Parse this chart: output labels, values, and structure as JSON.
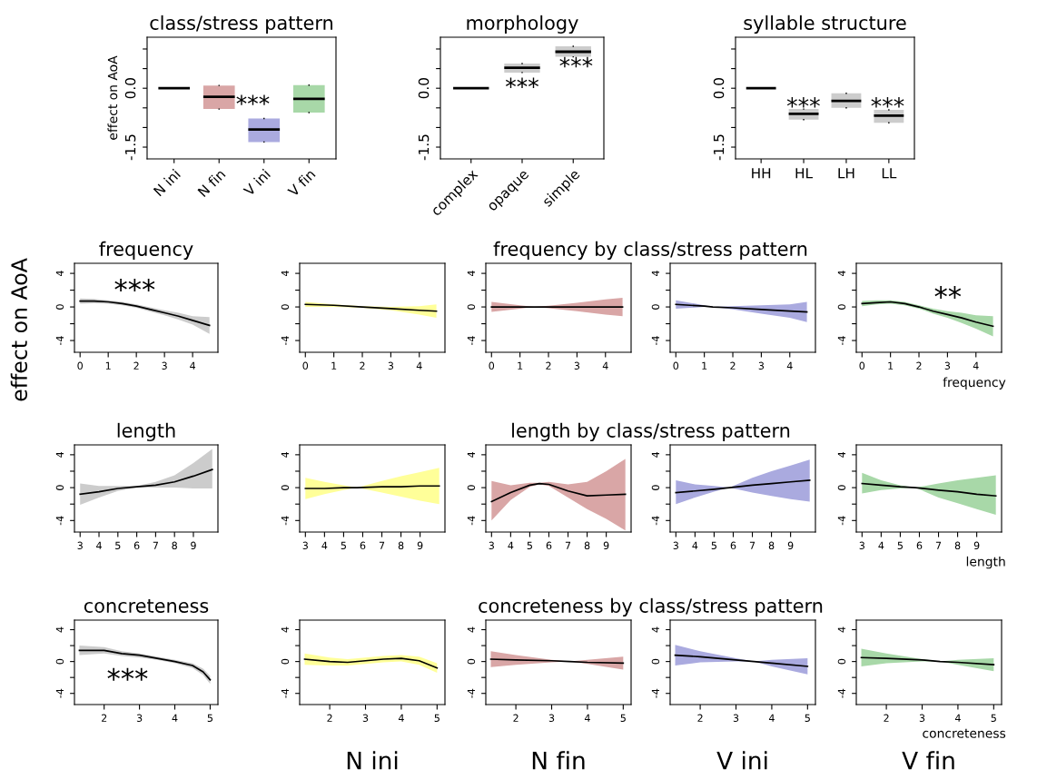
{
  "chart_data": [
    {
      "type": "box",
      "title": "class/stress pattern",
      "ylabel": "effect on AoA",
      "categories": [
        "N ini",
        "N fin",
        "V ini",
        "V fin"
      ],
      "boxes": [
        {
          "low": 0,
          "q1": 0,
          "median": 0,
          "q3": 0,
          "high": 0
        },
        {
          "low": -0.53,
          "q1": -0.53,
          "median": -0.22,
          "q3": 0.07,
          "high": 0.07
        },
        {
          "low": -1.37,
          "q1": -1.37,
          "median": -1.05,
          "q3": -0.77,
          "high": -0.77
        },
        {
          "low": -0.62,
          "q1": -0.62,
          "median": -0.27,
          "q3": 0.08,
          "high": 0.08
        }
      ],
      "colors": [
        null,
        "#d9a6a6",
        "#aaaadf",
        "#a8d8a8"
      ],
      "ylim": [
        -1.8,
        1.3
      ],
      "yticks": [
        {
          "value": 1.0,
          "label": null
        },
        {
          "value": 0.5,
          "label": null
        },
        {
          "value": 0.0,
          "label": "0.0"
        },
        {
          "value": -0.5,
          "label": null
        },
        {
          "value": -1.0,
          "label": null
        },
        -1.5
      ],
      "annotations": [
        "***"
      ]
    },
    {
      "type": "box",
      "title": "morphology",
      "categories": [
        "complex",
        "opaque",
        "simple"
      ],
      "boxes": [
        {
          "low": 0,
          "q1": 0,
          "median": 0,
          "q3": 0,
          "high": 0
        },
        {
          "low": 0.4,
          "q1": 0.4,
          "median": 0.52,
          "q3": 0.63,
          "high": 0.63
        },
        {
          "low": 0.8,
          "q1": 0.8,
          "median": 0.93,
          "q3": 1.07,
          "high": 1.07
        }
      ],
      "colors": [
        null,
        "#cccccc",
        "#cccccc"
      ],
      "ylim": [
        -1.8,
        1.3
      ],
      "yticks": [
        {
          "value": 1.0,
          "label": null
        },
        {
          "value": 0.5,
          "label": null
        },
        {
          "value": 0.0,
          "label": "0.0"
        },
        {
          "value": -0.5,
          "label": null
        },
        {
          "value": -1.0,
          "label": null
        },
        -1.5
      ],
      "annotations": [
        "***",
        "***"
      ]
    },
    {
      "type": "box",
      "title": "syllable structure",
      "categories": [
        "HH",
        "HL",
        "LH",
        "LL"
      ],
      "boxes": [
        {
          "low": 0,
          "q1": 0,
          "median": 0,
          "q3": 0,
          "high": 0
        },
        {
          "low": -0.8,
          "q1": -0.8,
          "median": -0.65,
          "q3": -0.53,
          "high": -0.53
        },
        {
          "low": -0.5,
          "q1": -0.5,
          "median": -0.32,
          "q3": -0.13,
          "high": -0.13
        },
        {
          "low": -0.88,
          "q1": -0.88,
          "median": -0.7,
          "q3": -0.55,
          "high": -0.55
        }
      ],
      "colors": [
        null,
        "#cccccc",
        "#cccccc",
        "#cccccc"
      ],
      "ylim": [
        -1.8,
        1.3
      ],
      "yticks": [
        {
          "value": 1.0,
          "label": null
        },
        {
          "value": 0.5,
          "label": null
        },
        {
          "value": 0.0,
          "label": "0.0"
        },
        {
          "value": -0.5,
          "label": null
        },
        {
          "value": -1.0,
          "label": null
        },
        -1.5
      ],
      "annotations": [
        "***",
        "***"
      ]
    },
    {
      "type": "line",
      "title": "frequency",
      "ylabel": "effect on AoA",
      "x": [
        0,
        0.5,
        1,
        1.5,
        2,
        2.5,
        3,
        3.5,
        4,
        4.6
      ],
      "series": [
        {
          "color": "#000000",
          "values": [
            0.7,
            0.7,
            0.6,
            0.4,
            0.1,
            -0.3,
            -0.7,
            -1.1,
            -1.6,
            -2.2
          ],
          "lower": [
            0.4,
            0.45,
            0.4,
            0.2,
            -0.1,
            -0.55,
            -1.0,
            -1.5,
            -2.1,
            -3.2
          ],
          "upper": [
            1.0,
            0.95,
            0.8,
            0.6,
            0.3,
            -0.05,
            -0.4,
            -0.7,
            -1.1,
            -1.2
          ]
        }
      ],
      "colors": [
        "#cccccc"
      ],
      "xlim": [
        -0.2,
        4.9
      ],
      "xticks": [
        0,
        1,
        2,
        3,
        4
      ],
      "ylim": [
        -5.4,
        5.2
      ],
      "yticks": [
        4,
        {
          "value": 2,
          "label": null
        },
        0,
        {
          "value": -2,
          "label": null
        },
        -4
      ],
      "annotations": [
        "***"
      ]
    },
    {
      "type": "line",
      "x": [
        0,
        1,
        2,
        3,
        4,
        4.6
      ],
      "series": [
        {
          "color": "#000000",
          "values": [
            0.3,
            0.2,
            0.0,
            -0.2,
            -0.4,
            -0.5
          ],
          "lower": [
            0.0,
            0.0,
            -0.1,
            -0.4,
            -0.9,
            -1.3
          ],
          "upper": [
            0.6,
            0.3,
            0.1,
            0.0,
            0.1,
            0.3
          ]
        }
      ],
      "colors": [
        "#ffff99"
      ],
      "xlim": [
        -0.2,
        4.9
      ],
      "xticks": [
        0,
        1,
        2,
        3,
        4
      ],
      "ylim": [
        -5.4,
        5.2
      ],
      "yticks": [
        4,
        {
          "value": 2,
          "label": null
        },
        0,
        {
          "value": -2,
          "label": null
        },
        -4
      ]
    },
    {
      "type": "line",
      "title": "frequency by class/stress pattern",
      "x": [
        0,
        1,
        1.5,
        2,
        3,
        4,
        4.6
      ],
      "series": [
        {
          "color": "#000000",
          "values": [
            0.0,
            0.0,
            0.0,
            0.0,
            0.0,
            0.0,
            0.0
          ],
          "lower": [
            -0.6,
            -0.2,
            0.0,
            -0.15,
            -0.5,
            -0.9,
            -1.1
          ],
          "upper": [
            0.6,
            0.2,
            0.0,
            0.15,
            0.5,
            0.9,
            1.1
          ]
        }
      ],
      "colors": [
        "#d9a6a6"
      ],
      "xlim": [
        -0.2,
        4.9
      ],
      "xticks": [
        0,
        1,
        2,
        3,
        4
      ],
      "ylim": [
        -5.4,
        5.2
      ],
      "yticks": [
        4,
        {
          "value": 2,
          "label": null
        },
        0,
        {
          "value": -2,
          "label": null
        },
        -4
      ]
    },
    {
      "type": "line",
      "x": [
        0,
        1,
        1.3,
        2,
        3,
        4,
        4.6
      ],
      "series": [
        {
          "color": "#000000",
          "values": [
            0.3,
            0.1,
            0.0,
            -0.1,
            -0.3,
            -0.5,
            -0.6
          ],
          "lower": [
            -0.2,
            0.0,
            0.0,
            -0.3,
            -0.8,
            -1.3,
            -1.8
          ],
          "upper": [
            0.8,
            0.2,
            0.0,
            0.1,
            0.2,
            0.3,
            0.6
          ]
        }
      ],
      "colors": [
        "#aaaadf"
      ],
      "xlim": [
        -0.2,
        4.9
      ],
      "xticks": [
        0,
        1,
        2,
        3,
        4
      ],
      "ylim": [
        -5.4,
        5.2
      ],
      "yticks": [
        4,
        {
          "value": 2,
          "label": null
        },
        0,
        {
          "value": -2,
          "label": null
        },
        -4
      ]
    },
    {
      "type": "line",
      "xlabel": "frequency",
      "x": [
        0,
        0.5,
        1,
        1.5,
        2,
        2.5,
        3,
        3.5,
        4,
        4.6
      ],
      "series": [
        {
          "color": "#000000",
          "values": [
            0.4,
            0.5,
            0.6,
            0.4,
            0.0,
            -0.5,
            -0.9,
            -1.3,
            -1.8,
            -2.3
          ],
          "lower": [
            0.1,
            0.3,
            0.4,
            0.2,
            -0.2,
            -0.8,
            -1.3,
            -1.9,
            -2.6,
            -3.5
          ],
          "upper": [
            0.7,
            0.8,
            0.8,
            0.6,
            0.2,
            -0.2,
            -0.5,
            -0.7,
            -1.0,
            -1.1
          ]
        }
      ],
      "colors": [
        "#a8d8a8"
      ],
      "xlim": [
        -0.2,
        4.9
      ],
      "xticks": [
        0,
        1,
        2,
        3,
        4
      ],
      "ylim": [
        -5.4,
        5.2
      ],
      "yticks": [
        4,
        {
          "value": 2,
          "label": null
        },
        0,
        {
          "value": -2,
          "label": null
        },
        -4
      ],
      "annotations": [
        "**"
      ]
    },
    {
      "type": "line",
      "title": "length",
      "x": [
        3,
        4,
        5,
        6,
        7,
        8,
        9,
        10
      ],
      "series": [
        {
          "color": "#000000",
          "values": [
            -0.8,
            -0.5,
            -0.1,
            0.1,
            0.3,
            0.7,
            1.4,
            2.2
          ],
          "lower": [
            -2.1,
            -1.2,
            -0.4,
            0.0,
            0.0,
            0.0,
            -0.1,
            -0.1
          ],
          "upper": [
            0.5,
            0.2,
            0.2,
            0.2,
            0.7,
            1.5,
            3.0,
            4.7
          ]
        }
      ],
      "colors": [
        "#cccccc"
      ],
      "xlim": [
        2.7,
        10.3
      ],
      "xticks": [
        3,
        4,
        5,
        6,
        7,
        8,
        9
      ],
      "ylim": [
        -5.4,
        5.2
      ],
      "yticks": [
        4,
        {
          "value": 2,
          "label": null
        },
        0,
        {
          "value": -2,
          "label": null
        },
        -4
      ]
    },
    {
      "type": "line",
      "x": [
        3,
        4,
        5,
        5.7,
        7,
        8,
        9,
        10
      ],
      "series": [
        {
          "color": "#000000",
          "values": [
            -0.1,
            -0.1,
            0.0,
            0.0,
            0.1,
            0.1,
            0.2,
            0.2
          ],
          "lower": [
            -1.4,
            -0.8,
            -0.3,
            0.0,
            -0.6,
            -1.1,
            -1.6,
            -2.0
          ],
          "upper": [
            1.2,
            0.7,
            0.3,
            0.0,
            0.8,
            1.4,
            1.9,
            2.4
          ]
        }
      ],
      "colors": [
        "#ffff99"
      ],
      "xlim": [
        2.7,
        10.3
      ],
      "xticks": [
        3,
        4,
        5,
        6,
        7,
        8,
        9
      ],
      "ylim": [
        -5.4,
        5.2
      ],
      "yticks": [
        4,
        {
          "value": 2,
          "label": null
        },
        0,
        {
          "value": -2,
          "label": null
        },
        -4
      ]
    },
    {
      "type": "line",
      "title": "length by class/stress pattern",
      "x": [
        3,
        4,
        5,
        5.5,
        6,
        7,
        8,
        9,
        10
      ],
      "series": [
        {
          "color": "#000000",
          "values": [
            -1.7,
            -0.6,
            0.3,
            0.5,
            0.4,
            -0.4,
            -1.0,
            -0.9,
            -0.8
          ],
          "lower": [
            -4.0,
            -1.5,
            0.1,
            0.4,
            0.2,
            -1.2,
            -2.6,
            -3.8,
            -5.2
          ],
          "upper": [
            0.8,
            0.3,
            0.6,
            0.6,
            0.7,
            0.4,
            0.7,
            2.0,
            3.5
          ]
        }
      ],
      "colors": [
        "#d9a6a6"
      ],
      "xlim": [
        2.7,
        10.3
      ],
      "xticks": [
        3,
        4,
        5,
        6,
        7,
        8,
        9
      ],
      "ylim": [
        -5.4,
        5.2
      ],
      "yticks": [
        4,
        {
          "value": 2,
          "label": null
        },
        0,
        {
          "value": -2,
          "label": null
        },
        -4
      ]
    },
    {
      "type": "line",
      "x": [
        3,
        4,
        5,
        5.8,
        7,
        8,
        9,
        10
      ],
      "series": [
        {
          "color": "#000000",
          "values": [
            -0.6,
            -0.4,
            -0.2,
            0.0,
            0.3,
            0.5,
            0.7,
            0.9
          ],
          "lower": [
            -2.0,
            -1.2,
            -0.5,
            0.0,
            -0.6,
            -1.0,
            -1.4,
            -1.7
          ],
          "upper": [
            0.9,
            0.4,
            0.2,
            0.0,
            1.2,
            2.0,
            2.7,
            3.4
          ]
        }
      ],
      "colors": [
        "#aaaadf"
      ],
      "xlim": [
        2.7,
        10.3
      ],
      "xticks": [
        3,
        4,
        5,
        6,
        7,
        8,
        9
      ],
      "ylim": [
        -5.4,
        5.2
      ],
      "yticks": [
        4,
        {
          "value": 2,
          "label": null
        },
        0,
        {
          "value": -2,
          "label": null
        },
        -4
      ]
    },
    {
      "type": "line",
      "xlabel": "length",
      "x": [
        3,
        4,
        5,
        5.8,
        7,
        8,
        9,
        10
      ],
      "series": [
        {
          "color": "#000000",
          "values": [
            0.5,
            0.3,
            0.1,
            0.0,
            -0.3,
            -0.5,
            -0.8,
            -1.0
          ],
          "lower": [
            -0.7,
            -0.3,
            -0.1,
            0.0,
            -1.2,
            -1.9,
            -2.6,
            -3.3
          ],
          "upper": [
            1.8,
            0.9,
            0.3,
            0.0,
            0.5,
            0.9,
            1.2,
            1.5
          ]
        }
      ],
      "colors": [
        "#a8d8a8"
      ],
      "xlim": [
        2.7,
        10.3
      ],
      "xticks": [
        3,
        4,
        5,
        6,
        7,
        8,
        9
      ],
      "ylim": [
        -5.4,
        5.2
      ],
      "yticks": [
        4,
        {
          "value": 2,
          "label": null
        },
        0,
        {
          "value": -2,
          "label": null
        },
        -4
      ]
    },
    {
      "type": "line",
      "title": "concreteness",
      "x": [
        1.3,
        2,
        2.5,
        3,
        3.5,
        4,
        4.5,
        4.8,
        5
      ],
      "series": [
        {
          "color": "#000000",
          "values": [
            1.4,
            1.4,
            1.0,
            0.8,
            0.4,
            0.0,
            -0.5,
            -1.3,
            -2.3
          ],
          "lower": [
            0.8,
            1.0,
            0.7,
            0.5,
            0.2,
            -0.2,
            -0.8,
            -1.7,
            -2.8
          ],
          "upper": [
            2.0,
            1.8,
            1.3,
            1.0,
            0.6,
            0.2,
            -0.2,
            -0.9,
            -1.8
          ]
        }
      ],
      "colors": [
        "#cccccc"
      ],
      "xlim": [
        1.16,
        5.22
      ],
      "xticks": [
        2,
        3,
        4,
        5
      ],
      "ylim": [
        -5.4,
        5.2
      ],
      "yticks": [
        4,
        {
          "value": 2,
          "label": null
        },
        0,
        {
          "value": -2,
          "label": null
        },
        -4
      ],
      "annotations": [
        "***"
      ]
    },
    {
      "type": "line",
      "annotations": [
        "N ini"
      ],
      "x": [
        1.3,
        2,
        2.5,
        3,
        3.5,
        4,
        4.5,
        5
      ],
      "series": [
        {
          "color": "#000000",
          "values": [
            0.3,
            0.0,
            -0.1,
            0.1,
            0.3,
            0.4,
            0.1,
            -0.8
          ],
          "lower": [
            -0.4,
            -0.5,
            -0.5,
            -0.3,
            -0.1,
            0.0,
            -0.4,
            -1.4
          ],
          "upper": [
            1.0,
            0.5,
            0.3,
            0.5,
            0.7,
            0.8,
            0.6,
            -0.2
          ]
        }
      ],
      "colors": [
        "#ffff99"
      ],
      "xlim": [
        1.16,
        5.22
      ],
      "xticks": [
        2,
        3,
        4,
        5
      ],
      "ylim": [
        -5.4,
        5.2
      ],
      "yticks": [
        4,
        {
          "value": 2,
          "label": null
        },
        0,
        {
          "value": -2,
          "label": null
        },
        -4
      ]
    },
    {
      "type": "line",
      "title": "concreteness by class/stress pattern",
      "annotations": [
        "N fin"
      ],
      "x": [
        1.3,
        2,
        3,
        3.5,
        4,
        5
      ],
      "series": [
        {
          "color": "#000000",
          "values": [
            0.3,
            0.2,
            0.1,
            0.0,
            -0.1,
            -0.2
          ],
          "lower": [
            -0.7,
            -0.4,
            -0.1,
            0.0,
            -0.3,
            -1.0
          ],
          "upper": [
            1.3,
            0.8,
            0.2,
            0.0,
            0.2,
            0.6
          ]
        }
      ],
      "colors": [
        "#d9a6a6"
      ],
      "xlim": [
        1.16,
        5.22
      ],
      "xticks": [
        2,
        3,
        4,
        5
      ],
      "ylim": [
        -5.4,
        5.2
      ],
      "yticks": [
        4,
        {
          "value": 2,
          "label": null
        },
        0,
        {
          "value": -2,
          "label": null
        },
        -4
      ]
    },
    {
      "type": "line",
      "annotations": [
        "V ini"
      ],
      "x": [
        1.3,
        2,
        3,
        3.5,
        4,
        5
      ],
      "series": [
        {
          "color": "#000000",
          "values": [
            0.8,
            0.6,
            0.2,
            0.0,
            -0.2,
            -0.6
          ],
          "lower": [
            -0.5,
            -0.1,
            0.0,
            0.0,
            -0.6,
            -1.6
          ],
          "upper": [
            2.1,
            1.3,
            0.4,
            0.0,
            0.2,
            0.4
          ]
        }
      ],
      "colors": [
        "#aaaadf"
      ],
      "xlim": [
        1.16,
        5.22
      ],
      "xticks": [
        2,
        3,
        4,
        5
      ],
      "ylim": [
        -5.4,
        5.2
      ],
      "yticks": [
        4,
        {
          "value": 2,
          "label": null
        },
        0,
        {
          "value": -2,
          "label": null
        },
        -4
      ]
    },
    {
      "type": "line",
      "xlabel": "concreteness",
      "annotations": [
        "V fin"
      ],
      "x": [
        1.3,
        2,
        3,
        3.5,
        4,
        5
      ],
      "series": [
        {
          "color": "#000000",
          "values": [
            0.5,
            0.4,
            0.2,
            0.0,
            -0.1,
            -0.4
          ],
          "lower": [
            -0.6,
            -0.2,
            0.0,
            0.0,
            -0.4,
            -1.2
          ],
          "upper": [
            1.6,
            1.0,
            0.3,
            0.0,
            0.2,
            0.4
          ]
        }
      ],
      "colors": [
        "#a8d8a8"
      ],
      "xlim": [
        1.16,
        5.22
      ],
      "xticks": [
        2,
        3,
        4,
        5
      ],
      "ylim": [
        -5.4,
        5.2
      ],
      "yticks": [
        4,
        {
          "value": 2,
          "label": null
        },
        0,
        {
          "value": -2,
          "label": null
        },
        -4
      ]
    }
  ]
}
